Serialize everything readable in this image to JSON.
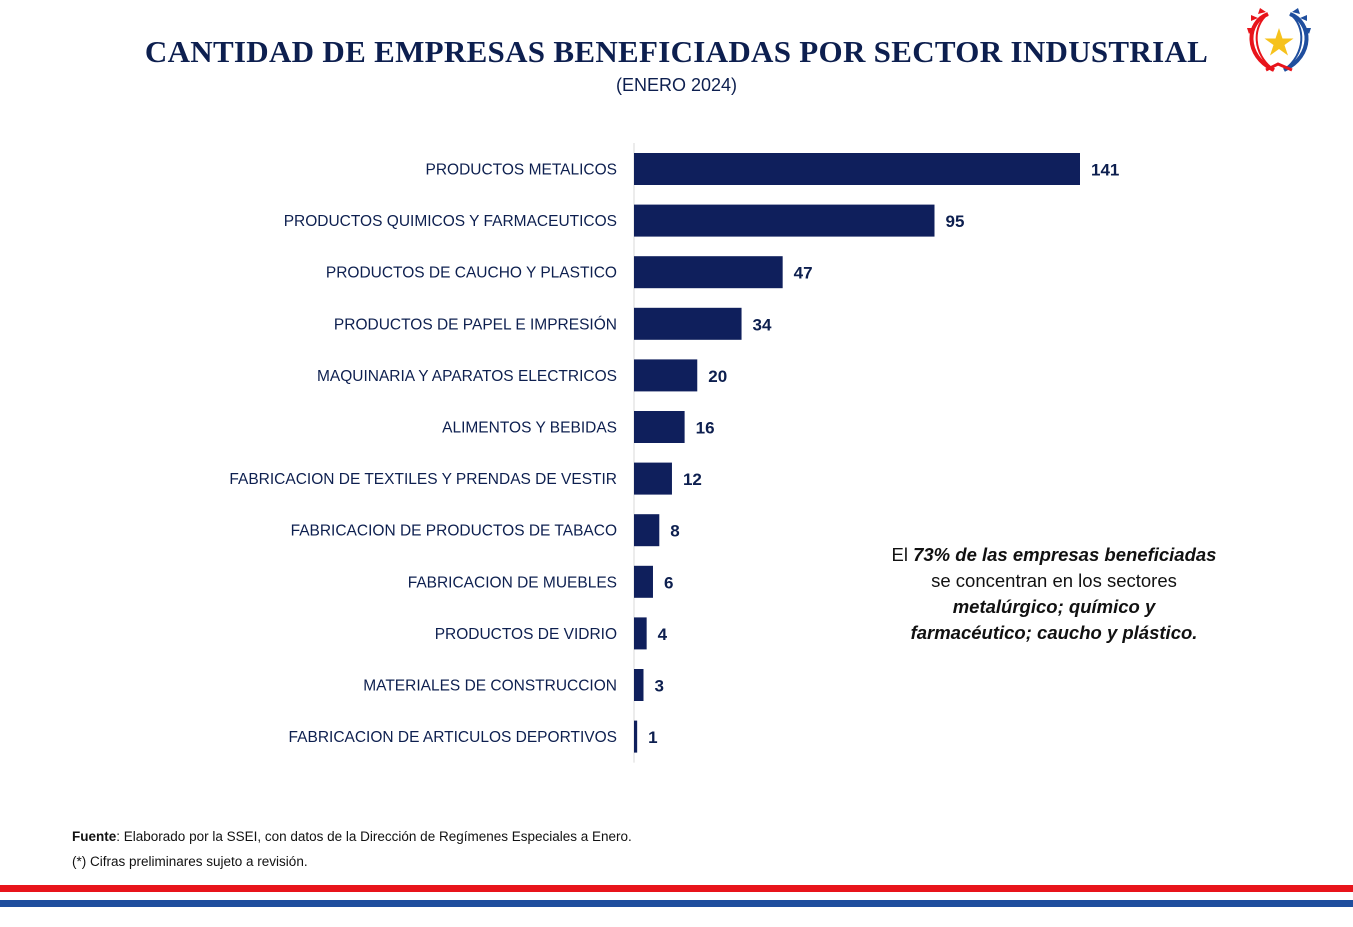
{
  "header": {
    "title": "CANTIDAD DE EMPRESAS BENEFICIADAS POR SECTOR INDUSTRIAL",
    "subtitle": "(ENERO 2024)",
    "seal_icon": "paraguay-coat-of-arms-star-wreath"
  },
  "colors": {
    "bar": "#0f1f5c",
    "text": "#0d1f4f",
    "stripe_red": "#e8141b",
    "stripe_blue": "#1f4e9e",
    "star": "#f6c21c"
  },
  "chart_data": {
    "type": "bar",
    "orientation": "horizontal",
    "categories": [
      "PRODUCTOS METALICOS",
      "PRODUCTOS QUIMICOS Y FARMACEUTICOS",
      "PRODUCTOS DE CAUCHO Y PLASTICO",
      "PRODUCTOS DE PAPEL E IMPRESIÓN",
      "MAQUINARIA Y APARATOS ELECTRICOS",
      "ALIMENTOS Y BEBIDAS",
      "FABRICACION DE TEXTILES Y PRENDAS DE VESTIR",
      "FABRICACION DE PRODUCTOS DE TABACO",
      "FABRICACION DE MUEBLES",
      "PRODUCTOS DE VIDRIO",
      "MATERIALES DE CONSTRUCCION",
      "FABRICACION DE ARTICULOS DEPORTIVOS"
    ],
    "values": [
      141,
      95,
      47,
      34,
      20,
      16,
      12,
      8,
      6,
      4,
      3,
      1
    ],
    "data_labels": [
      "141",
      "95",
      "47",
      "34",
      "20",
      "16",
      "12",
      "8",
      "6",
      "4",
      "3",
      "1"
    ],
    "xlim": [
      0,
      141
    ],
    "grid": false,
    "legend": "none",
    "title": "CANTIDAD DE EMPRESAS BENEFICIADAS POR SECTOR INDUSTRIAL",
    "subtitle": "(ENERO 2024)"
  },
  "note": {
    "part1": "El ",
    "part2": "73% de las empresas beneficiadas",
    "part3": "se concentran en los sectores",
    "part4": "metalúrgico; químico y",
    "part5": "farmacéutico; caucho y plástico."
  },
  "footer": {
    "source_label": "Fuente",
    "source_text": ": Elaborado por la SSEI, con datos de la Dirección de Regímenes Especiales a Enero.",
    "disclaimer": "(*) Cifras preliminares sujeto a revisión."
  }
}
